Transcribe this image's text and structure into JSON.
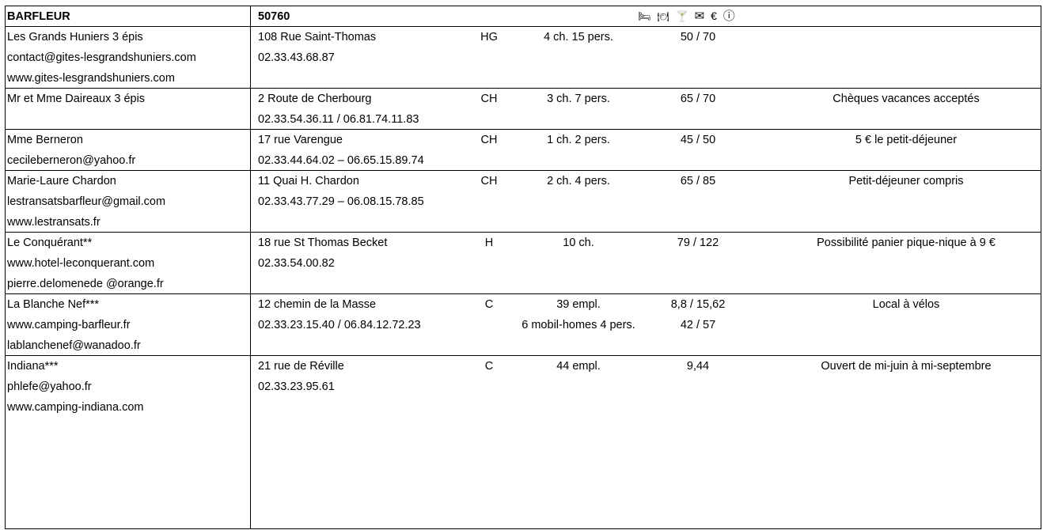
{
  "header": {
    "town": "BARFLEUR",
    "postcode": "50760",
    "icons": [
      {
        "name": "bed",
        "glyph": "🛏"
      },
      {
        "name": "plate",
        "glyph": "🍽"
      },
      {
        "name": "glass",
        "glyph": "🍸"
      },
      {
        "name": "mail",
        "glyph": "✉"
      },
      {
        "name": "euro",
        "glyph": "€"
      },
      {
        "name": "info",
        "glyph": "ⓘ"
      }
    ]
  },
  "entries": [
    {
      "lines": [
        [
          "Les Grands Huniers 3 épis",
          "108 Rue Saint-Thomas",
          "HG",
          "4 ch. 15 pers.",
          "50 / 70",
          ""
        ],
        [
          "contact@gites-lesgrandshuniers.com",
          "02.33.43.68.87",
          "",
          "",
          "",
          ""
        ],
        [
          "www.gites-lesgrandshuniers.com",
          "",
          "",
          "",
          "",
          ""
        ]
      ]
    },
    {
      "lines": [
        [
          "Mr et Mme Daireaux 3 épis",
          "2 Route de Cherbourg",
          "CH",
          "3 ch. 7 pers.",
          "65 / 70",
          "Chèques vacances acceptés"
        ],
        [
          "",
          "02.33.54.36.11 / 06.81.74.11.83",
          "",
          "",
          "",
          ""
        ]
      ]
    },
    {
      "lines": [
        [
          "Mme Berneron",
          "17 rue Varengue",
          "CH",
          "1 ch. 2 pers.",
          "45 / 50",
          "5 € le petit-déjeuner"
        ],
        [
          "cecileberneron@yahoo.fr",
          "02.33.44.64.02 – 06.65.15.89.74",
          "",
          "",
          "",
          ""
        ]
      ]
    },
    {
      "lines": [
        [
          "Marie-Laure Chardon",
          "11 Quai H. Chardon",
          "CH",
          "2 ch. 4 pers.",
          "65 / 85",
          "Petit-déjeuner compris"
        ],
        [
          "lestransatsbarfleur@gmail.com",
          "02.33.43.77.29 – 06.08.15.78.85",
          "",
          "",
          "",
          ""
        ],
        [
          "www.lestransats.fr",
          "",
          "",
          "",
          "",
          ""
        ]
      ]
    },
    {
      "lines": [
        [
          "Le Conquérant**",
          "18 rue St Thomas Becket",
          "H",
          "10 ch.",
          "79 / 122",
          "Possibilité panier pique-nique à 9 €"
        ],
        [
          "www.hotel-leconquerant.com",
          "02.33.54.00.82",
          "",
          "",
          "",
          ""
        ],
        [
          "pierre.delomenede @orange.fr",
          "",
          "",
          "",
          "",
          ""
        ]
      ]
    },
    {
      "lines": [
        [
          "La Blanche Nef***",
          "12 chemin de la Masse",
          "C",
          "39 empl.",
          "8,8 / 15,62",
          "Local à vélos"
        ],
        [
          "www.camping-barfleur.fr",
          "02.33.23.15.40 / 06.84.12.72.23",
          "",
          "6 mobil-homes 4 pers.",
          "42 / 57",
          ""
        ],
        [
          "lablanchenef@wanadoo.fr",
          "",
          "",
          "",
          "",
          ""
        ]
      ]
    },
    {
      "lines": [
        [
          "Indiana***",
          "21 rue de Réville",
          "C",
          "44 empl.",
          "9,44",
          "Ouvert de mi-juin à mi-septembre"
        ],
        [
          "phlefe@yahoo.fr",
          "02.33.23.95.61",
          "",
          "",
          "",
          ""
        ],
        [
          "www.camping-indiana.com",
          "",
          "",
          "",
          "",
          ""
        ]
      ]
    }
  ]
}
